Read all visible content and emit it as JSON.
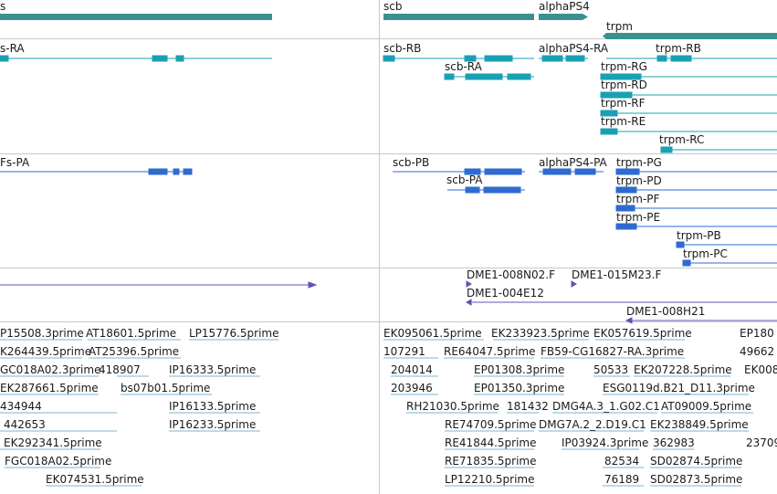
{
  "colors": {
    "gene": "#3b9191",
    "transcript": "#1aa0b4",
    "protein": "#2e6bd1",
    "bac": "#6a4fb5",
    "est": "#7ab4d8",
    "separator": "#c8c8c8"
  },
  "tracks": {
    "genes": [
      "s",
      "scb",
      "alphaPS4",
      "trpm"
    ],
    "transcripts": [
      "s-RA",
      "scb-RB",
      "scb-RA",
      "alphaPS4-RA",
      "trpm-RB",
      "trpm-RG",
      "trpm-RD",
      "trpm-RF",
      "trpm-RE",
      "trpm-RC"
    ],
    "proteins": [
      "Fs-PA",
      "scb-PB",
      "scb-PA",
      "alphaPS4-PA",
      "trpm-PG",
      "trpm-PD",
      "trpm-PF",
      "trpm-PE",
      "trpm-PB",
      "trpm-PC"
    ],
    "bac_clones": [
      "DME1-008N02.F",
      "DME1-015M23.F",
      "DME1-004E12",
      "DME1-008H21"
    ],
    "est_alignments": [
      "P15508.3prime",
      "AT18601.5prime",
      "LP15776.5prime",
      "EK095061.5prime",
      "EK233923.5prime",
      "EK057619.5prime",
      "EP180",
      "K264439.5prime",
      "AT25396.5prime",
      "107291",
      "RE64047.5prime",
      "FB59-CG16827-RA.3prime",
      "49662",
      "GC018A02.3prime",
      "418907",
      "IP16333.5prime",
      "204014",
      "EP01308.3prime",
      "50533",
      "EK207228.5prime",
      "EK008",
      "EK287661.5prime",
      "bs07b01.5prime",
      "203946",
      "EP01350.3prime",
      "ESG0119d.B21_D11.3prime",
      "434944",
      "IP16133.5prime",
      "RH21030.5prime",
      "181432",
      "DMG4A.3_1.G02.C1",
      "AT09009.5prime",
      "442653",
      "IP16233.5prime",
      "RE74709.5prime",
      "DMG7A.2_2.D19.C1",
      "EK238849.5prime",
      "EK292341.5prime",
      "RE41844.5prime",
      "IP03924.3prime",
      "362983",
      "23709",
      "FGC018A02.5prime",
      "RE71835.5prime",
      "82534",
      "SD02874.5prime",
      "EK074531.5prime",
      "LP12210.5prime",
      "76189",
      "SD02873.5prime"
    ]
  }
}
